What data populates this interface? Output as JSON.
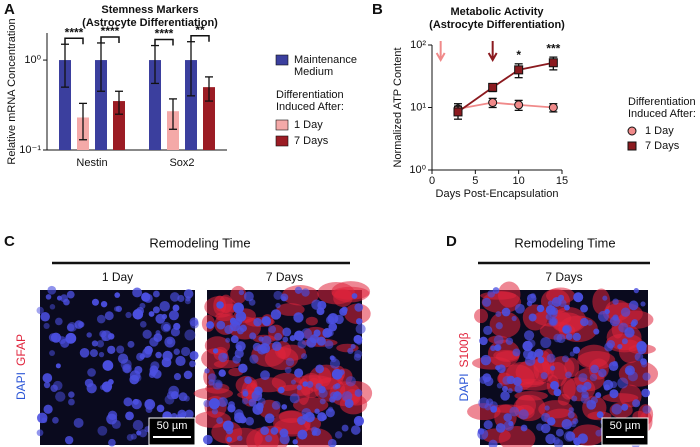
{
  "panel_labels": [
    "A",
    "B",
    "C",
    "D"
  ],
  "chart_data": [
    {
      "type": "bar",
      "title": "Stemness Markers",
      "subtitle": "(Astrocyte Differentiation)",
      "y_label": "Relative mRNA Concentration",
      "legend_title": "Differentiation Induced After:",
      "categories": [
        "Nestin",
        "Sox2"
      ],
      "series": [
        {
          "name": "Maintenance Medium",
          "color": "#3b3f9e",
          "values": [
            1.0,
            1.0
          ],
          "errors": [
            0.5,
            0.45
          ]
        },
        {
          "name": "1 Day",
          "color": "#f4a9a8",
          "values": [
            0.23,
            0.27
          ],
          "errors": [
            0.1,
            0.1
          ]
        },
        {
          "color": "#3b3f9e",
          "values": [
            1.0,
            1.0
          ],
          "errors": [
            0.55,
            0.6
          ]
        },
        {
          "name": "7 Days",
          "color": "#9b1c24",
          "values": [
            0.35,
            0.5
          ],
          "errors": [
            0.1,
            0.15
          ]
        }
      ],
      "significance": [
        "****",
        "****",
        "****",
        "**"
      ],
      "log_scale": true,
      "ylim": [
        0.1,
        2
      ],
      "yticks": [
        {
          "value": 0.1,
          "label": "10⁻¹"
        },
        {
          "value": 1,
          "label": "10⁰"
        }
      ]
    },
    {
      "type": "line",
      "title": "Metabolic Activity",
      "subtitle": "(Astrocyte Differentiation)",
      "x_label": "Days Post-Encapsulation",
      "y_label": "Normalized ATP Content",
      "legend_title": "Differentiation Induced After:",
      "x": [
        3,
        7,
        10,
        14
      ],
      "series": [
        {
          "name": "1 Day",
          "color": "#f08a8a",
          "marker": "circle",
          "values": [
            9.5,
            12,
            11,
            10
          ],
          "errors": [
            2,
            2,
            2,
            1.5
          ]
        },
        {
          "name": "7 Days",
          "color": "#8b1a1f",
          "marker": "square",
          "values": [
            8.5,
            21,
            40,
            52
          ],
          "errors": [
            2,
            3,
            10,
            12
          ]
        }
      ],
      "arrows": [
        {
          "x": 1,
          "color": "#f08a8a"
        },
        {
          "x": 7,
          "color": "#8b1a1f"
        }
      ],
      "annotations": [
        {
          "x": 10,
          "text": "*"
        },
        {
          "x": 14,
          "text": "***"
        }
      ],
      "log_scale": true,
      "xlim": [
        0,
        15
      ],
      "xticks": [
        0,
        5,
        10,
        15
      ],
      "ylim": [
        1,
        100
      ],
      "yticks": [
        {
          "value": 1,
          "label": "10⁰"
        },
        {
          "value": 10,
          "label": "10¹"
        },
        {
          "value": 100,
          "label": "10²"
        }
      ]
    }
  ],
  "micrographs": {
    "C": {
      "header": "Remodeling Time",
      "columns": [
        "1 Day",
        "7 Days"
      ],
      "stains": [
        "DAPI",
        "GFAP"
      ],
      "scale_bar": "50 µm"
    },
    "D": {
      "header": "Remodeling Time",
      "columns": [
        "7 Days"
      ],
      "stains": [
        "DAPI",
        "S100β"
      ],
      "scale_bar": "50 µm"
    }
  }
}
